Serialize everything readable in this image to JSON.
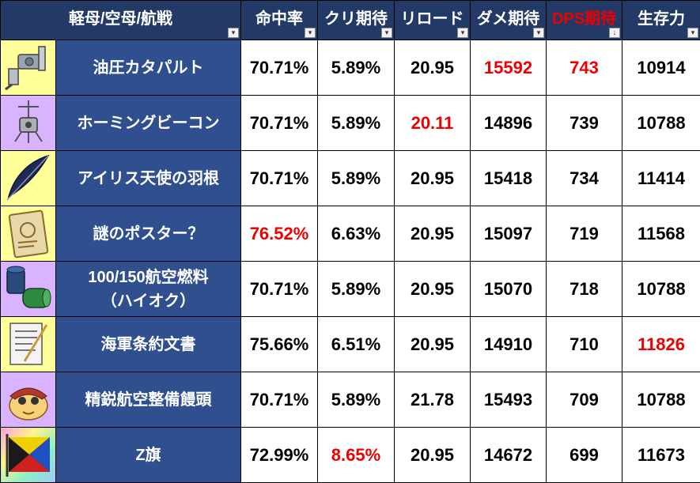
{
  "headers": {
    "item": "軽母/空母/航戦",
    "accuracy": "命中率",
    "crit": "クリ期待",
    "reload": "リロード",
    "damage": "ダメ期待",
    "dps": "DPS期待",
    "survival": "生存力"
  },
  "colors": {
    "header_bg": "#243a66",
    "name_bg": "#2f4f8f",
    "highlight": "#ee0000"
  },
  "rows": [
    {
      "icon": "hydraulic-catapult-icon",
      "name": "油圧カタパルト",
      "name2": "",
      "accuracy": "70.71%",
      "crit": "5.89%",
      "reload": "20.95",
      "damage": "15592",
      "dps": "743",
      "survival": "10914"
    },
    {
      "icon": "homing-beacon-icon",
      "name": "ホーミングビーコン",
      "name2": "",
      "accuracy": "70.71%",
      "crit": "5.89%",
      "reload": "20.11",
      "damage": "14896",
      "dps": "739",
      "survival": "10788"
    },
    {
      "icon": "iris-angel-feather-icon",
      "name": "アイリス天使の羽根",
      "name2": "",
      "accuracy": "70.71%",
      "crit": "5.89%",
      "reload": "20.95",
      "damage": "15418",
      "dps": "734",
      "survival": "11414"
    },
    {
      "icon": "mysterious-poster-icon",
      "name": "謎のポスター？",
      "name2": "",
      "accuracy": "76.52%",
      "crit": "6.63%",
      "reload": "20.95",
      "damage": "15097",
      "dps": "719",
      "survival": "11568"
    },
    {
      "icon": "aviation-fuel-barrels-icon",
      "name": "100/150航空燃料",
      "name2": "（ハイオク）",
      "accuracy": "70.71%",
      "crit": "5.89%",
      "reload": "20.95",
      "damage": "15070",
      "dps": "718",
      "survival": "10788"
    },
    {
      "icon": "naval-treaty-document-icon",
      "name": "海軍条約文書",
      "name2": "",
      "accuracy": "75.66%",
      "crit": "6.51%",
      "reload": "20.95",
      "damage": "14910",
      "dps": "710",
      "survival": "11826"
    },
    {
      "icon": "elite-aviation-bun-icon",
      "name": "精鋭航空整備饅頭",
      "name2": "",
      "accuracy": "70.71%",
      "crit": "5.89%",
      "reload": "21.78",
      "damage": "15493",
      "dps": "709",
      "survival": "10788"
    },
    {
      "icon": "z-flag-icon",
      "name": "Z旗",
      "name2": "",
      "accuracy": "72.99%",
      "crit": "8.65%",
      "reload": "20.95",
      "damage": "14672",
      "dps": "699",
      "survival": "11673"
    }
  ]
}
